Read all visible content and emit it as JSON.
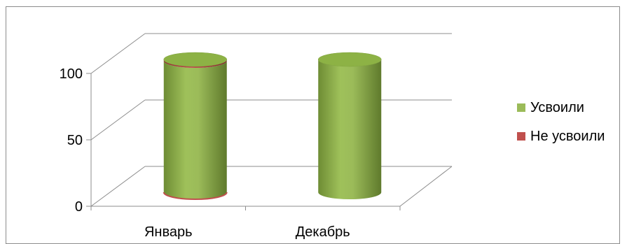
{
  "chart_data": {
    "type": "bar",
    "style": "3d-cylinder",
    "categories": [
      "Январь",
      "Декабрь"
    ],
    "series": [
      {
        "name": "Усвоили",
        "values": [
          99,
          100
        ],
        "color": "#9BBB59"
      },
      {
        "name": "Не усвоили",
        "values": [
          1,
          0
        ],
        "color": "#C0504D"
      }
    ],
    "stacked": true,
    "ylim": [
      0,
      100
    ],
    "yticks": [
      "0",
      "50",
      "100"
    ],
    "grid": true,
    "legend_position": "right"
  }
}
